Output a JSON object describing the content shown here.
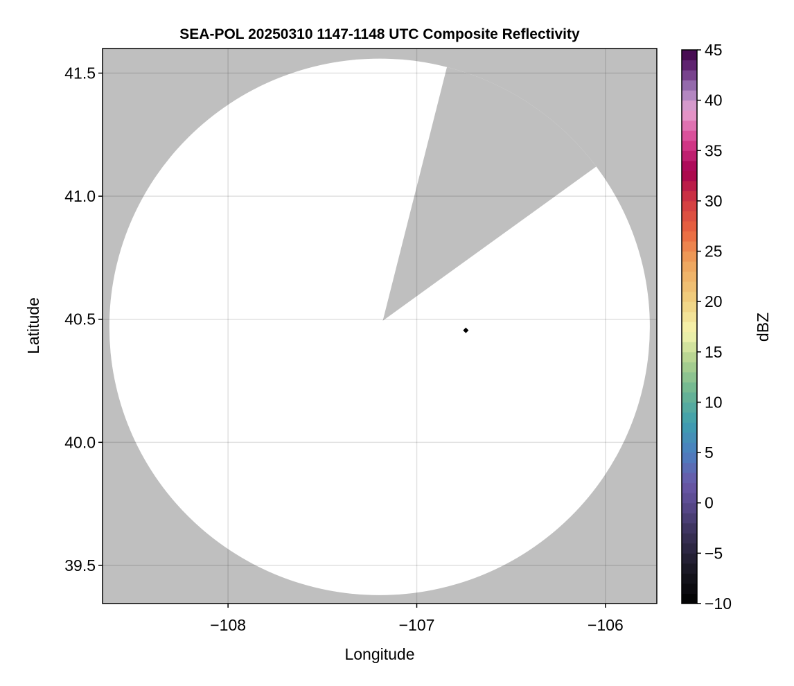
{
  "chart_data": {
    "type": "heatmap",
    "title": "SEA-POL 20250310 1147-1148 UTC Composite Reflectivity",
    "xlabel": "Longitude",
    "ylabel": "Latitude",
    "xlim": [
      -108.665,
      -105.728
    ],
    "ylim": [
      39.345,
      41.6
    ],
    "xticks": [
      -108,
      -107,
      -106
    ],
    "xtick_labels": [
      "−108",
      "−107",
      "−106"
    ],
    "yticks": [
      39.5,
      40.0,
      40.5,
      41.0,
      41.5
    ],
    "ytick_labels": [
      "39.5",
      "40.0",
      "40.5",
      "41.0",
      "41.5"
    ],
    "grid": true,
    "background_color": "#bfbfbf",
    "coverage": {
      "color": "#ffffff",
      "center": [
        -107.197,
        40.469
      ],
      "radius_lon": 1.432,
      "radius_lat": 1.09,
      "blocked_sector": {
        "apex": [
          -107.18,
          40.494
        ],
        "edge1": [
          -106.838,
          41.531
        ],
        "edge2": [
          -106.055,
          41.117
        ]
      }
    },
    "marker": {
      "lon": -106.74,
      "lat": 40.455,
      "shape": "diamond",
      "color": "#000000"
    },
    "colorbar": {
      "label": "dBZ",
      "range": [
        -10,
        45
      ],
      "step": 1,
      "ticks": [
        -10,
        -5,
        0,
        5,
        10,
        15,
        20,
        25,
        30,
        35,
        40,
        45
      ],
      "tick_labels": [
        "−10",
        "−5",
        "0",
        "5",
        "10",
        "15",
        "20",
        "25",
        "30",
        "35",
        "40",
        "45"
      ],
      "color_stops": [
        [
          -10,
          "#000000"
        ],
        [
          -7,
          "#17151f"
        ],
        [
          -3,
          "#3a3158"
        ],
        [
          0,
          "#5a4a8f"
        ],
        [
          2,
          "#6a58a8"
        ],
        [
          5,
          "#4b7fc0"
        ],
        [
          8,
          "#3e9fae"
        ],
        [
          11,
          "#6bb592"
        ],
        [
          14,
          "#aed08e"
        ],
        [
          17,
          "#f6f5ae"
        ],
        [
          20,
          "#f0d181"
        ],
        [
          24,
          "#eea25c"
        ],
        [
          27,
          "#e9653f"
        ],
        [
          30,
          "#d13a42"
        ],
        [
          33,
          "#a5004f"
        ],
        [
          36,
          "#d84090"
        ],
        [
          39,
          "#e6a3d1"
        ],
        [
          41,
          "#a27dbb"
        ],
        [
          43,
          "#6a2f7e"
        ],
        [
          45,
          "#3d0245"
        ]
      ]
    }
  }
}
